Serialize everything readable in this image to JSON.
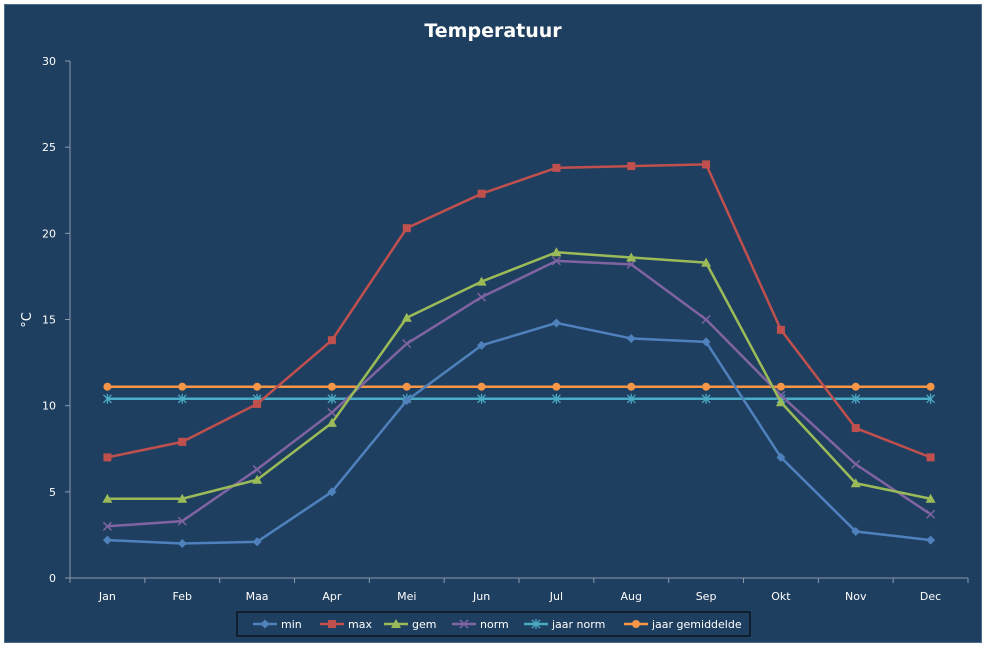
{
  "chart_data": {
    "type": "line",
    "title": "Temperatuur",
    "xlabel": "",
    "ylabel": "°C",
    "ylim": [
      0,
      30
    ],
    "yticks": [
      0,
      5,
      10,
      15,
      20,
      25,
      30
    ],
    "grid": false,
    "legend_position": "bottom",
    "categories": [
      "Jan",
      "Feb",
      "Maa",
      "Apr",
      "Mei",
      "Jun",
      "Jul",
      "Aug",
      "Sep",
      "Okt",
      "Nov",
      "Dec"
    ],
    "series": [
      {
        "name": "min",
        "color": "#4f81bd",
        "marker": "diamond",
        "values": [
          2.2,
          2.0,
          2.1,
          5.0,
          10.3,
          13.5,
          14.8,
          13.9,
          13.7,
          7.0,
          2.7,
          2.2
        ]
      },
      {
        "name": "max",
        "color": "#c0504d",
        "marker": "square",
        "values": [
          7.0,
          7.9,
          10.1,
          13.8,
          20.3,
          22.3,
          23.8,
          23.9,
          24.0,
          14.4,
          8.7,
          7.0
        ]
      },
      {
        "name": "gem",
        "color": "#9bbb59",
        "marker": "triangle",
        "values": [
          4.6,
          4.6,
          5.7,
          9.0,
          15.1,
          17.2,
          18.9,
          18.6,
          18.3,
          10.2,
          5.5,
          4.6
        ]
      },
      {
        "name": "norm",
        "color": "#8064a2",
        "marker": "x",
        "values": [
          3.0,
          3.3,
          6.3,
          9.6,
          13.6,
          16.3,
          18.4,
          18.2,
          15.0,
          10.6,
          6.6,
          3.7
        ]
      },
      {
        "name": "jaar norm",
        "color": "#4bacc6",
        "marker": "star",
        "values": [
          10.4,
          10.4,
          10.4,
          10.4,
          10.4,
          10.4,
          10.4,
          10.4,
          10.4,
          10.4,
          10.4,
          10.4
        ]
      },
      {
        "name": "jaar gemiddelde",
        "color": "#f79646",
        "marker": "circle",
        "values": [
          11.1,
          11.1,
          11.1,
          11.1,
          11.1,
          11.1,
          11.1,
          11.1,
          11.1,
          11.1,
          11.1,
          11.1
        ]
      }
    ]
  },
  "colors": {
    "background": "#1f3f61",
    "axis": "#8899aa",
    "text": "#ffffff"
  }
}
